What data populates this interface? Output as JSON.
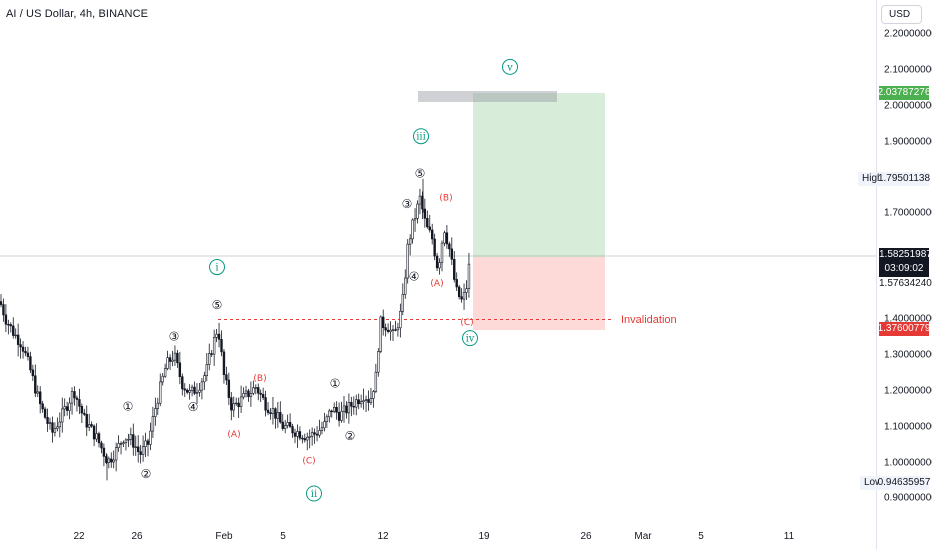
{
  "title": "AI / US Dollar, 4h, BINANCE",
  "currency": "USD",
  "chart_data": {
    "type": "candlestick",
    "symbol": "AI / US Dollar",
    "interval": "4h",
    "exchange": "BINANCE",
    "ylim": [
      0.86,
      2.28
    ],
    "y_ticks": [
      "2.20000000",
      "2.10000000",
      "2.00000000",
      "1.90000000",
      "1.70000000",
      "1.40000000",
      "1.30000000",
      "1.20000000",
      "1.10000000",
      "1.00000000",
      "0.90000000"
    ],
    "x_ticks": [
      "22",
      "26",
      "Feb",
      "5",
      "12",
      "19",
      "26",
      "Mar",
      "5",
      "11"
    ],
    "price_labels": {
      "target": "2.03787276",
      "high_label": "High",
      "high": "1.79501138",
      "current": "1.58251987",
      "countdown": "03:09:02",
      "entry": "1.57634240",
      "invalidation": "1.37600779",
      "low_label": "Low",
      "low": "0.94635957"
    },
    "annotations": {
      "invalidation_text": "Invalidation",
      "wave_labels": [
        {
          "text": "①",
          "x": 128,
          "price": 1.155,
          "color": "#131722"
        },
        {
          "text": "②",
          "x": 146,
          "price": 0.965,
          "color": "#131722"
        },
        {
          "text": "③",
          "x": 174,
          "price": 1.352,
          "color": "#131722"
        },
        {
          "text": "④",
          "x": 193,
          "price": 1.153,
          "color": "#131722"
        },
        {
          "text": "⑤",
          "x": 217,
          "price": 1.44,
          "color": "#131722"
        },
        {
          "text": "①",
          "x": 335,
          "price": 1.22,
          "color": "#131722"
        },
        {
          "text": "②",
          "x": 350,
          "price": 1.072,
          "color": "#131722"
        },
        {
          "text": "③",
          "x": 407,
          "price": 1.725,
          "color": "#131722"
        },
        {
          "text": "④",
          "x": 414,
          "price": 1.52,
          "color": "#131722"
        },
        {
          "text": "⑤",
          "x": 420,
          "price": 1.81,
          "color": "#131722"
        },
        {
          "text": "(B)",
          "x": 260,
          "price": 1.238,
          "color": "#e53935"
        },
        {
          "text": "(A)",
          "x": 234,
          "price": 1.08,
          "color": "#e53935"
        },
        {
          "text": "(C)",
          "x": 309,
          "price": 1.005,
          "color": "#e53935"
        },
        {
          "text": "(B)",
          "x": 446,
          "price": 1.746,
          "color": "#e53935"
        },
        {
          "text": "(A)",
          "x": 437,
          "price": 1.505,
          "color": "#e53935"
        },
        {
          "text": "(C)",
          "x": 467,
          "price": 1.395,
          "color": "#e53935"
        }
      ],
      "roman_labels": [
        {
          "text": "i",
          "x": 217,
          "price": 1.547
        },
        {
          "text": "ii",
          "x": 314,
          "price": 0.91
        },
        {
          "text": "iii",
          "x": 421,
          "price": 1.915
        },
        {
          "text": "iv",
          "x": 470,
          "price": 1.347
        },
        {
          "text": "v",
          "x": 510,
          "price": 2.11
        }
      ]
    },
    "candle_seeds": [
      [
        1.448,
        1.393
      ],
      [
        1.393,
        1.371
      ],
      [
        1.371,
        1.38
      ],
      [
        1.38,
        1.301
      ],
      [
        1.301,
        1.357
      ],
      [
        1.357,
        1.311
      ],
      [
        1.311,
        1.316
      ],
      [
        1.316,
        1.314
      ],
      [
        1.314,
        1.311
      ],
      [
        1.311,
        1.366
      ]
    ]
  }
}
